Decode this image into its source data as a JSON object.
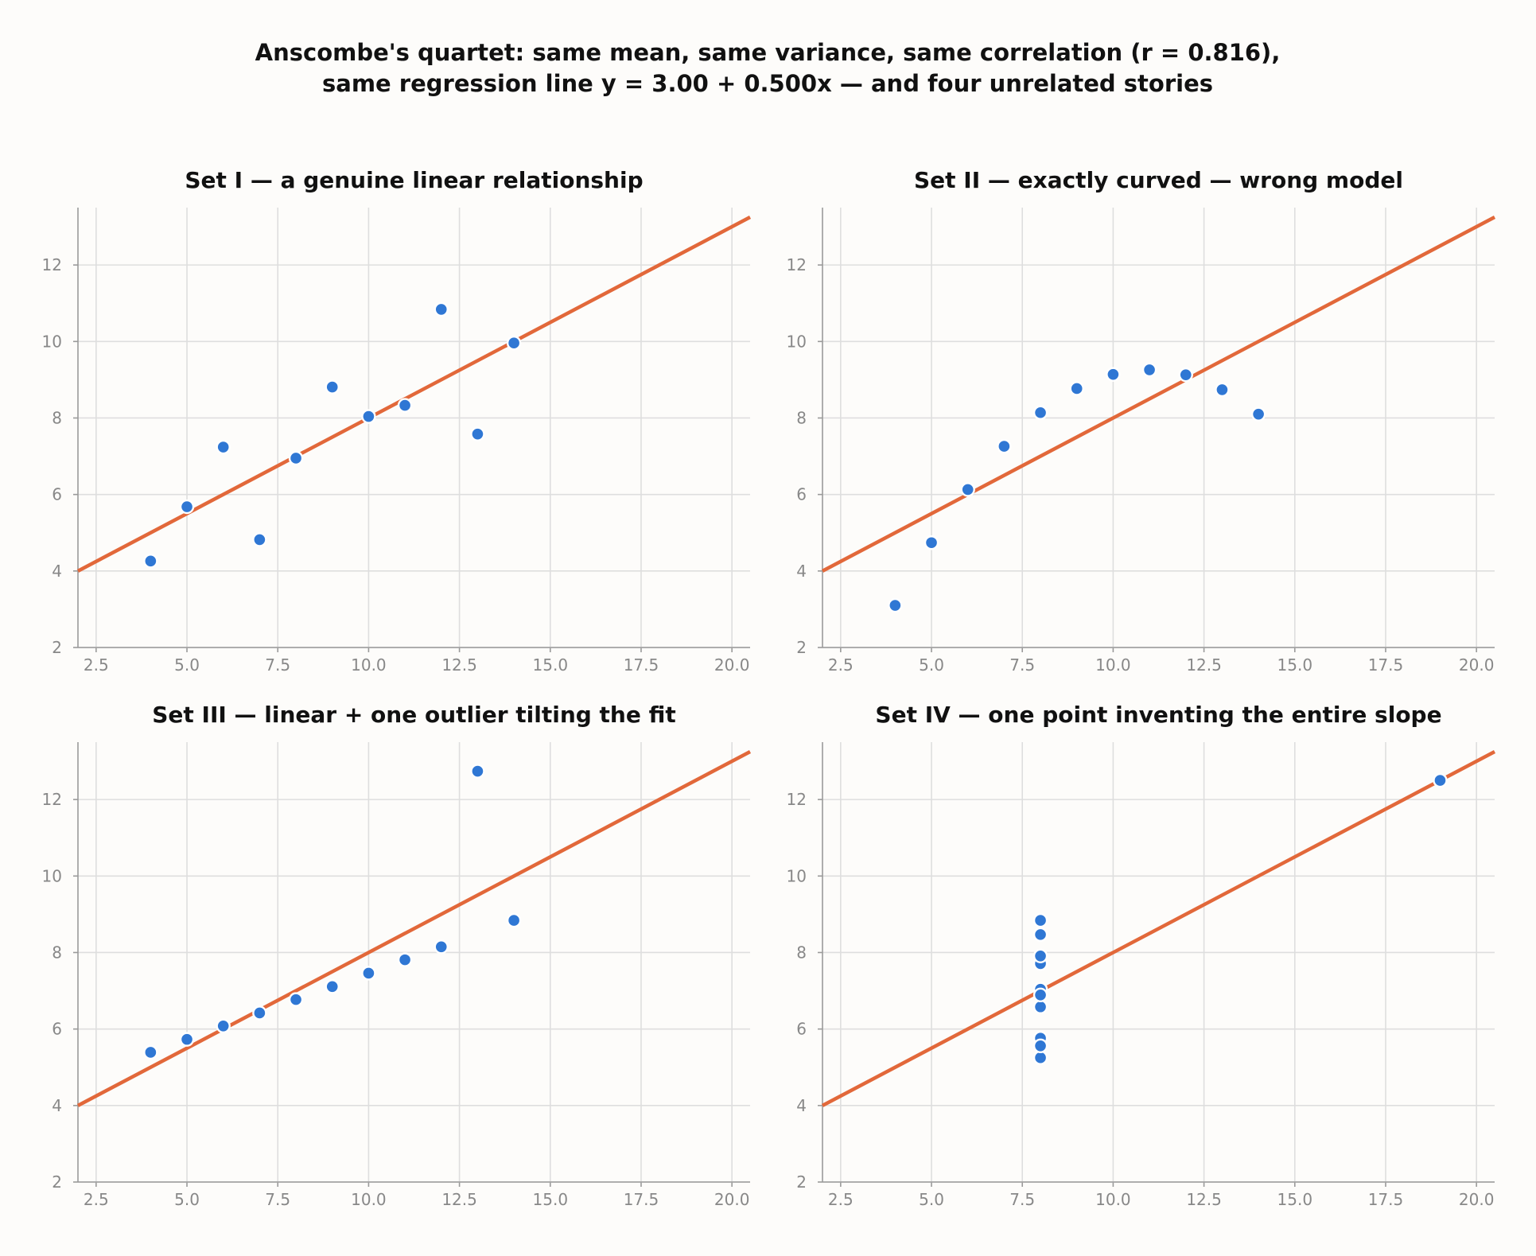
{
  "figure": {
    "title_line1": "Anscombe's quartet: same mean, same variance, same correlation (r = 0.816),",
    "title_line2": "same regression line  y = 3.00 + 0.500x  — and four unrelated stories"
  },
  "colors": {
    "points": "#2f77d4",
    "fit_line": "#e2683a",
    "grid": "#dedede",
    "background": "#fdfcfa"
  },
  "chart_data": [
    {
      "type": "scatter",
      "title": "Set I — a genuine linear relationship",
      "xlim": [
        2,
        20.5
      ],
      "ylim": [
        2,
        13.5
      ],
      "xticks": [
        "2.5",
        "5.0",
        "7.5",
        "10.0",
        "12.5",
        "15.0",
        "17.5",
        "20.0"
      ],
      "yticks": [
        "2",
        "4",
        "6",
        "8",
        "10",
        "12"
      ],
      "grid": true,
      "fit": {
        "intercept": 3.0,
        "slope": 0.5
      },
      "series": [
        {
          "x": [
            10,
            8,
            13,
            9,
            11,
            14,
            6,
            4,
            12,
            7,
            5
          ],
          "y": [
            8.04,
            6.95,
            7.58,
            8.81,
            8.33,
            9.96,
            7.24,
            4.26,
            10.84,
            4.82,
            5.68
          ]
        }
      ]
    },
    {
      "type": "scatter",
      "title": "Set II — exactly curved — wrong model",
      "xlim": [
        2,
        20.5
      ],
      "ylim": [
        2,
        13.5
      ],
      "xticks": [
        "2.5",
        "5.0",
        "7.5",
        "10.0",
        "12.5",
        "15.0",
        "17.5",
        "20.0"
      ],
      "yticks": [
        "2",
        "4",
        "6",
        "8",
        "10",
        "12"
      ],
      "grid": true,
      "fit": {
        "intercept": 3.0,
        "slope": 0.5
      },
      "series": [
        {
          "x": [
            10,
            8,
            13,
            9,
            11,
            14,
            6,
            4,
            12,
            7,
            5
          ],
          "y": [
            9.14,
            8.14,
            8.74,
            8.77,
            9.26,
            8.1,
            6.13,
            3.1,
            9.13,
            7.26,
            4.74
          ]
        }
      ]
    },
    {
      "type": "scatter",
      "title": "Set III — linear + one outlier tilting the fit",
      "xlim": [
        2,
        20.5
      ],
      "ylim": [
        2,
        13.5
      ],
      "xticks": [
        "2.5",
        "5.0",
        "7.5",
        "10.0",
        "12.5",
        "15.0",
        "17.5",
        "20.0"
      ],
      "yticks": [
        "2",
        "4",
        "6",
        "8",
        "10",
        "12"
      ],
      "grid": true,
      "fit": {
        "intercept": 3.0,
        "slope": 0.5
      },
      "series": [
        {
          "x": [
            10,
            8,
            13,
            9,
            11,
            14,
            6,
            4,
            12,
            7,
            5
          ],
          "y": [
            7.46,
            6.77,
            12.74,
            7.11,
            7.81,
            8.84,
            6.08,
            5.39,
            8.15,
            6.42,
            5.73
          ]
        }
      ]
    },
    {
      "type": "scatter",
      "title": "Set IV — one point inventing the entire slope",
      "xlim": [
        2,
        20.5
      ],
      "ylim": [
        2,
        13.5
      ],
      "xticks": [
        "2.5",
        "5.0",
        "7.5",
        "10.0",
        "12.5",
        "15.0",
        "17.5",
        "20.0"
      ],
      "yticks": [
        "2",
        "4",
        "6",
        "8",
        "10",
        "12"
      ],
      "grid": true,
      "fit": {
        "intercept": 3.0,
        "slope": 0.5
      },
      "series": [
        {
          "x": [
            8,
            8,
            8,
            8,
            8,
            8,
            8,
            19,
            8,
            8,
            8
          ],
          "y": [
            6.58,
            5.76,
            7.71,
            8.84,
            8.47,
            7.04,
            5.25,
            12.5,
            5.56,
            7.91,
            6.89
          ]
        }
      ]
    }
  ]
}
